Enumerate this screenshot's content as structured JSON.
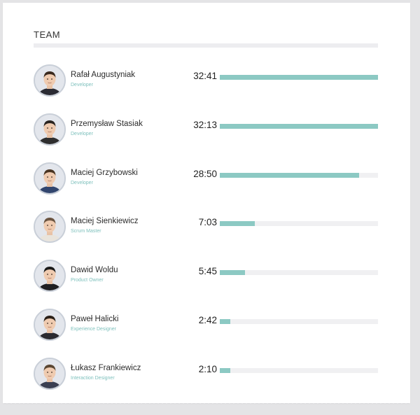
{
  "section": {
    "title": "TEAM"
  },
  "accent_color": "#8cc9c3",
  "members": [
    {
      "name": "Rafał Augustyniak",
      "role": "Developer",
      "time": "32:41",
      "fraction": 1.0,
      "avatar": "avatar-photo-icon"
    },
    {
      "name": "Przemysław Stasiak",
      "role": "Developer",
      "time": "32:13",
      "fraction": 1.0,
      "avatar": "avatar-photo-icon"
    },
    {
      "name": "Maciej Grzybowski",
      "role": "Developer",
      "time": "28:50",
      "fraction": 0.88,
      "avatar": "avatar-photo-icon"
    },
    {
      "name": "Maciej Sienkiewicz",
      "role": "Scrum Master",
      "time": "7:03",
      "fraction": 0.22,
      "avatar": "avatar-photo-icon"
    },
    {
      "name": "Dawid Woldu",
      "role": "Product Owner",
      "time": "5:45",
      "fraction": 0.16,
      "avatar": "avatar-photo-icon"
    },
    {
      "name": "Paweł Halicki",
      "role": "Experience Designer",
      "time": "2:42",
      "fraction": 0.065,
      "avatar": "avatar-photo-icon"
    },
    {
      "name": "Łukasz Frankiewicz",
      "role": "Interaction Designer",
      "time": "2:10",
      "fraction": 0.065,
      "avatar": "avatar-photo-icon"
    }
  ]
}
